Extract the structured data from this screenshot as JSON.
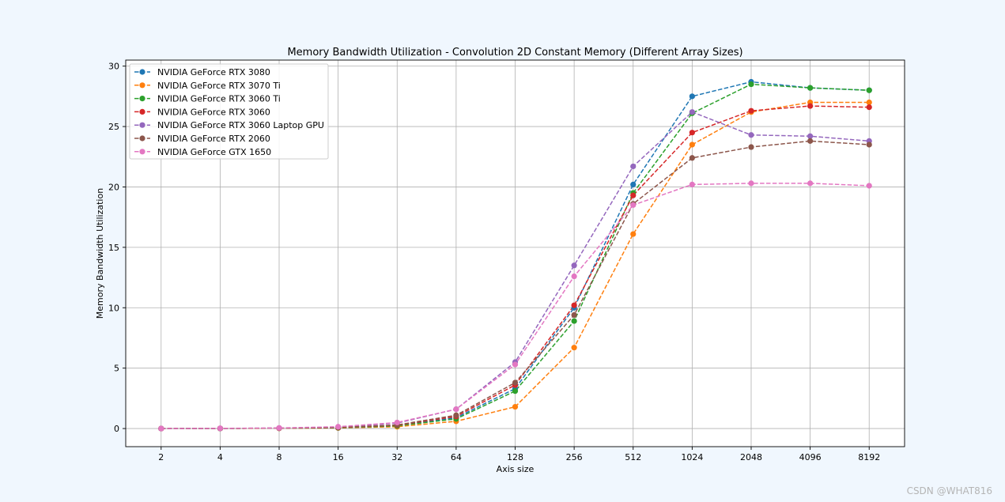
{
  "chart_data": {
    "type": "line",
    "title": "Memory Bandwidth Utilization - Convolution 2D Constant Memory (Different Array Sizes)",
    "xlabel": "Axis size",
    "ylabel": "Memory Bandwidth Utilization",
    "categories": [
      "2",
      "4",
      "8",
      "16",
      "32",
      "64",
      "128",
      "256",
      "512",
      "1024",
      "2048",
      "4096",
      "8192"
    ],
    "ylim": [
      -1.5,
      30.5
    ],
    "yticks": [
      0,
      5,
      10,
      15,
      20,
      25,
      30
    ],
    "grid": true,
    "legend_position": "upper-left",
    "series": [
      {
        "name": "NVIDIA GeForce RTX 3080",
        "color": "#1f77b4",
        "values": [
          0.0,
          0.01,
          0.03,
          0.07,
          0.25,
          0.9,
          3.3,
          10.0,
          20.2,
          27.5,
          28.7,
          28.2,
          28.0
        ]
      },
      {
        "name": "NVIDIA GeForce RTX 3070 Ti",
        "color": "#ff7f0e",
        "values": [
          0.0,
          0.01,
          0.02,
          0.05,
          0.15,
          0.6,
          1.8,
          6.7,
          16.1,
          23.5,
          26.2,
          27.0,
          27.0
        ]
      },
      {
        "name": "NVIDIA GeForce RTX 3060 Ti",
        "color": "#2ca02c",
        "values": [
          0.0,
          0.01,
          0.03,
          0.06,
          0.22,
          0.8,
          3.1,
          8.9,
          19.5,
          26.1,
          28.5,
          28.2,
          28.0
        ]
      },
      {
        "name": "NVIDIA GeForce RTX 3060",
        "color": "#d62728",
        "values": [
          0.0,
          0.01,
          0.03,
          0.08,
          0.28,
          1.0,
          3.6,
          10.2,
          19.3,
          24.5,
          26.3,
          26.7,
          26.6
        ]
      },
      {
        "name": "NVIDIA GeForce RTX 3060 Laptop GPU",
        "color": "#9467bd",
        "values": [
          0.0,
          0.01,
          0.04,
          0.12,
          0.45,
          1.6,
          5.5,
          13.5,
          21.7,
          26.2,
          24.3,
          24.2,
          23.8
        ]
      },
      {
        "name": "NVIDIA GeForce RTX 2060",
        "color": "#8c564b",
        "values": [
          0.0,
          0.01,
          0.03,
          0.09,
          0.3,
          1.1,
          3.8,
          9.4,
          18.6,
          22.4,
          23.3,
          23.8,
          23.5
        ]
      },
      {
        "name": "NVIDIA GeForce GTX 1650",
        "color": "#e377c2",
        "values": [
          0.0,
          0.02,
          0.05,
          0.15,
          0.5,
          1.6,
          5.3,
          12.6,
          18.5,
          20.2,
          20.3,
          20.3,
          20.1
        ]
      }
    ]
  },
  "watermark": "CSDN @WHAT816"
}
